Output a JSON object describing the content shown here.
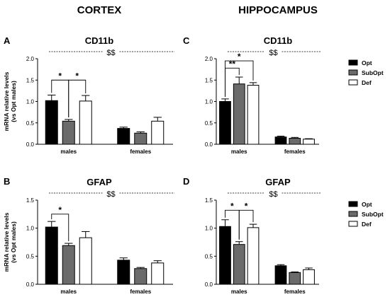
{
  "figure": {
    "column_titles": [
      "CORTEX",
      "HIPPOCAMPUS"
    ]
  },
  "colors": {
    "Opt": "#000000",
    "SubOpt": "#6b6b6b",
    "Def": "#ffffff"
  },
  "chart_data": [
    {
      "panel": "A",
      "type": "bar",
      "title": "CD11b",
      "categories": [
        "males",
        "females"
      ],
      "ylabel": "mRNA relative levels\n(vs Opt males)",
      "ylim": [
        0,
        2
      ],
      "yticks": [
        "0.0",
        "0.5",
        "1.0",
        "1.5",
        "2.0"
      ],
      "series": [
        {
          "name": "Opt",
          "values": [
            1.02,
            0.37
          ],
          "errors": [
            0.13,
            0.03
          ]
        },
        {
          "name": "SubOpt",
          "values": [
            0.54,
            0.26
          ],
          "errors": [
            0.04,
            0.03
          ]
        },
        {
          "name": "Def",
          "values": [
            1.01,
            0.54
          ],
          "errors": [
            0.13,
            0.09
          ]
        }
      ],
      "group_annotation": "$$",
      "brackets": [
        {
          "from": "Opt",
          "to": "SubOpt",
          "label": "*"
        },
        {
          "from": "SubOpt",
          "to": "Def",
          "label": "*"
        }
      ],
      "legend": false
    },
    {
      "panel": "C",
      "type": "bar",
      "title": "CD11b",
      "categories": [
        "males",
        "females"
      ],
      "ylabel": "",
      "ylim": [
        0,
        2
      ],
      "yticks": [
        "0.0",
        "0.5",
        "1.0",
        "1.5",
        "2.0"
      ],
      "series": [
        {
          "name": "Opt",
          "values": [
            1.0,
            0.17
          ],
          "errors": [
            0.06,
            0.02
          ]
        },
        {
          "name": "SubOpt",
          "values": [
            1.41,
            0.14
          ],
          "errors": [
            0.16,
            0.02
          ]
        },
        {
          "name": "Def",
          "values": [
            1.38,
            0.12
          ],
          "errors": [
            0.06,
            0.01
          ]
        }
      ],
      "group_annotation": "$$",
      "brackets": [
        {
          "from": "Opt",
          "to": "SubOpt",
          "label": "**",
          "level": 1
        },
        {
          "from": "Opt",
          "to": "Def",
          "label": "*",
          "level": 2
        }
      ],
      "legend": true,
      "legend_labels": [
        "Opt",
        "SubOpt",
        "Def"
      ]
    },
    {
      "panel": "B",
      "type": "bar",
      "title": "GFAP",
      "categories": [
        "males",
        "females"
      ],
      "ylabel": "mRNA relative levels\n(vs Opt males)",
      "ylim": [
        0,
        1.5
      ],
      "yticks": [
        "0.0",
        "0.5",
        "1.0",
        "1.5"
      ],
      "series": [
        {
          "name": "Opt",
          "values": [
            1.02,
            0.43
          ],
          "errors": [
            0.1,
            0.04
          ]
        },
        {
          "name": "SubOpt",
          "values": [
            0.69,
            0.28
          ],
          "errors": [
            0.04,
            0.02
          ]
        },
        {
          "name": "Def",
          "values": [
            0.83,
            0.38
          ],
          "errors": [
            0.11,
            0.04
          ]
        }
      ],
      "group_annotation": "$$",
      "brackets": [
        {
          "from": "Opt",
          "to": "SubOpt",
          "label": "*"
        }
      ],
      "legend": false
    },
    {
      "panel": "D",
      "type": "bar",
      "title": "GFAP",
      "categories": [
        "males",
        "females"
      ],
      "ylabel": "",
      "ylim": [
        0,
        1.5
      ],
      "yticks": [
        "0.0",
        "0.5",
        "1.0",
        "1.5"
      ],
      "series": [
        {
          "name": "Opt",
          "values": [
            1.03,
            0.33
          ],
          "errors": [
            0.12,
            0.02
          ]
        },
        {
          "name": "SubOpt",
          "values": [
            0.71,
            0.21
          ],
          "errors": [
            0.05,
            0.01
          ]
        },
        {
          "name": "Def",
          "values": [
            1.01,
            0.26
          ],
          "errors": [
            0.06,
            0.03
          ]
        }
      ],
      "group_annotation": "$$",
      "brackets": [
        {
          "from": "Opt",
          "to": "SubOpt",
          "label": "*"
        },
        {
          "from": "SubOpt",
          "to": "Def",
          "label": "*"
        }
      ],
      "legend": true,
      "legend_labels": [
        "Opt",
        "SubOpt",
        "Def"
      ]
    }
  ]
}
